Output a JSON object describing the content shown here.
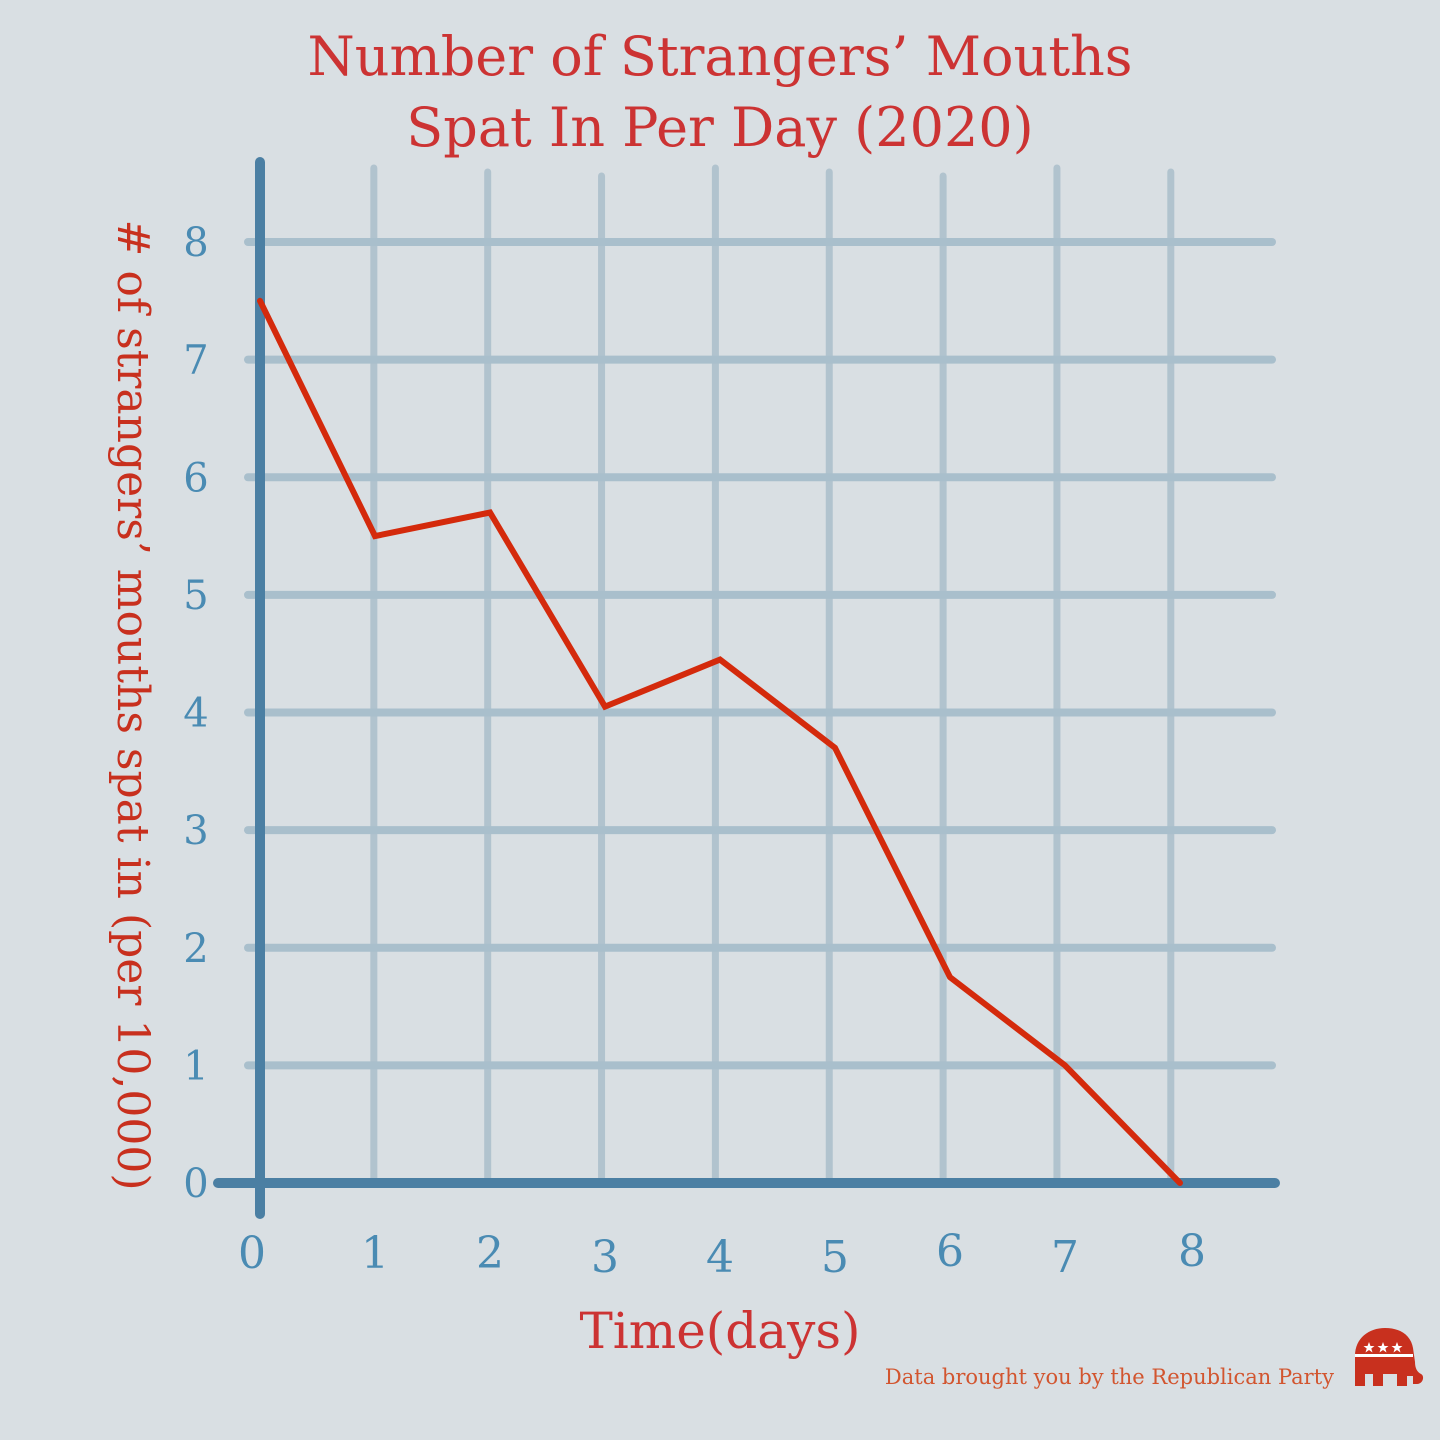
{
  "chart_data": {
    "type": "line",
    "title": [
      "Number of Strangers’ Mouths",
      "Spat In Per Day (2020)"
    ],
    "xlabel": "Time(days)",
    "ylabel": "# of strangers’ mouths spat in (per 10,000)",
    "x": [
      0,
      1,
      2,
      3,
      4,
      5,
      6,
      7,
      8
    ],
    "values": [
      7.5,
      5.5,
      5.7,
      4.05,
      4.45,
      3.7,
      1.75,
      1.0,
      0.0
    ],
    "x_ticks": [
      "0",
      "1",
      "2",
      "3",
      "4",
      "5",
      "6",
      "7",
      "8"
    ],
    "y_ticks": [
      "0",
      "1",
      "2",
      "3",
      "4",
      "5",
      "6",
      "7",
      "8"
    ],
    "xlim": [
      0,
      8
    ],
    "ylim": [
      0,
      8
    ],
    "grid": true,
    "line_color": "#d42a0c"
  },
  "footer": {
    "credit": "Data brought you by the Republican Party",
    "logo": "republican-elephant-icon"
  },
  "colors": {
    "background": "#d9dfe3",
    "title": "#cc3333",
    "ticks": "#4a8bb3",
    "axis": "#4b7fa3"
  }
}
